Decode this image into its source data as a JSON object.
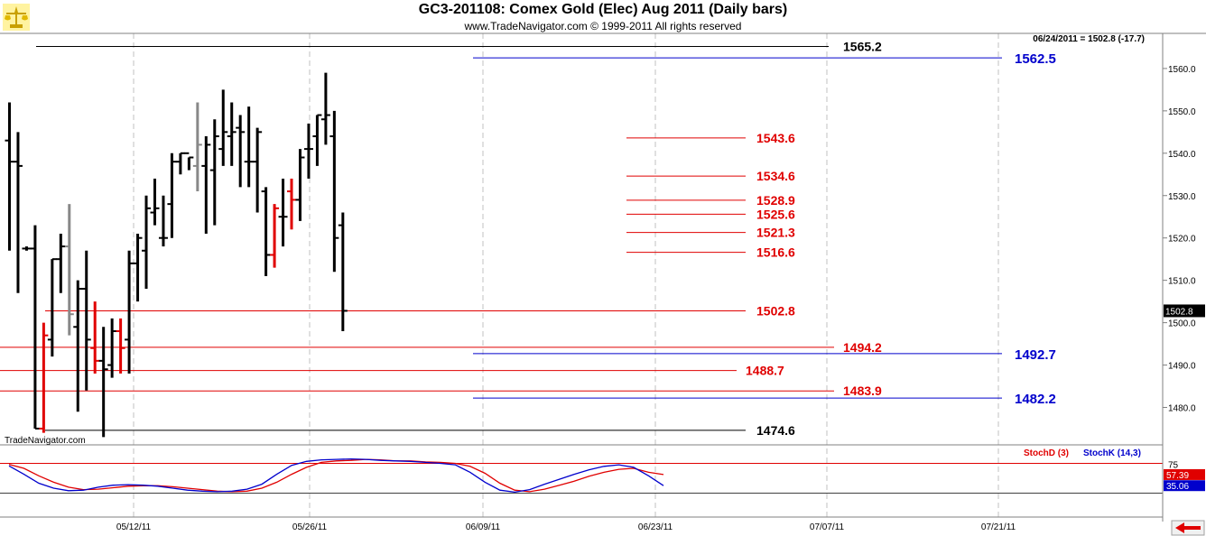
{
  "header": {
    "title": "GC3-201108:  Comex Gold (Elec) Aug 2011  (Daily bars)",
    "copyright": "www.TradeNavigator.com © 1999-2011 All rights reserved"
  },
  "logo_icon": "gold-scale-icon",
  "watermark": "TradeNavigator.com",
  "quote_readout": "06/24/2011 = 1502.8 (-17.7)",
  "last_price_tag": "1502.8",
  "colors": {
    "bar_default": "#000000",
    "bar_down": "#e00000",
    "bar_gray": "#888888",
    "level_red": "#e00000",
    "level_blue": "#0000cc",
    "level_black": "#000000",
    "stochD": "#e00000",
    "stochK": "#0000cc",
    "grid": "#c0c0c0"
  },
  "chart_data": [
    {
      "type": "ohlc",
      "title": "GC3-201108:  Comex Gold (Elec) Aug 2011  (Daily bars)",
      "ylim": [
        1470,
        1570
      ],
      "y_ticks": [
        1480,
        1490,
        1500,
        1510,
        1520,
        1530,
        1540,
        1550,
        1560
      ],
      "x_tick_labels": [
        "05/12/11",
        "05/26/11",
        "06/09/11",
        "06/23/11",
        "07/07/11",
        "07/21/11"
      ],
      "grid": true,
      "bars": [
        {
          "o": 1543.0,
          "h": 1552.0,
          "l": 1517.0,
          "c": 1538.0,
          "color": "black"
        },
        {
          "o": 1538.0,
          "h": 1545.0,
          "l": 1507.0,
          "c": 1537.0,
          "color": "black"
        },
        {
          "o": 1517.5,
          "h": 1518.0,
          "l": 1517.0,
          "c": 1517.5,
          "color": "black"
        },
        {
          "o": 1517.5,
          "h": 1523.0,
          "l": 1475.0,
          "c": 1475.0,
          "color": "black"
        },
        {
          "o": 1475.0,
          "h": 1500.0,
          "l": 1474.0,
          "c": 1497.0,
          "color": "red"
        },
        {
          "o": 1496.0,
          "h": 1515.0,
          "l": 1492.0,
          "c": 1515.0,
          "color": "black"
        },
        {
          "o": 1515.0,
          "h": 1521.0,
          "l": 1507.0,
          "c": 1518.0,
          "color": "black"
        },
        {
          "o": 1518.0,
          "h": 1528.0,
          "l": 1497.0,
          "c": 1502.0,
          "color": "gray"
        },
        {
          "o": 1499.0,
          "h": 1510.0,
          "l": 1479.0,
          "c": 1508.0,
          "color": "black"
        },
        {
          "o": 1508.0,
          "h": 1517.0,
          "l": 1484.0,
          "c": 1496.0,
          "color": "black"
        },
        {
          "o": 1494.0,
          "h": 1505.0,
          "l": 1488.0,
          "c": 1491.0,
          "color": "red"
        },
        {
          "o": 1491.0,
          "h": 1499.0,
          "l": 1473.0,
          "c": 1489.0,
          "color": "black"
        },
        {
          "o": 1490.0,
          "h": 1501.0,
          "l": 1487.0,
          "c": 1498.0,
          "color": "black"
        },
        {
          "o": 1498.0,
          "h": 1501.0,
          "l": 1488.0,
          "c": 1494.0,
          "color": "red"
        },
        {
          "o": 1496.0,
          "h": 1517.0,
          "l": 1488.0,
          "c": 1514.0,
          "color": "black"
        },
        {
          "o": 1514.0,
          "h": 1521.0,
          "l": 1505.0,
          "c": 1520.0,
          "color": "black"
        },
        {
          "o": 1517.0,
          "h": 1530.0,
          "l": 1508.0,
          "c": 1527.0,
          "color": "black"
        },
        {
          "o": 1526.0,
          "h": 1534.0,
          "l": 1523.0,
          "c": 1527.0,
          "color": "black"
        },
        {
          "o": 1520.0,
          "h": 1530.0,
          "l": 1518.0,
          "c": 1520.0,
          "color": "black"
        },
        {
          "o": 1528.0,
          "h": 1540.0,
          "l": 1520.0,
          "c": 1538.0,
          "color": "black"
        },
        {
          "o": 1538.0,
          "h": 1540.0,
          "l": 1535.0,
          "c": 1540.0,
          "color": "black"
        },
        {
          "o": 1540.0,
          "h": 1539.0,
          "l": 1536.0,
          "c": 1539.0,
          "color": "black"
        },
        {
          "o": 1537.0,
          "h": 1552.0,
          "l": 1531.0,
          "c": 1542.0,
          "color": "gray"
        },
        {
          "o": 1537.0,
          "h": 1544.0,
          "l": 1521.0,
          "c": 1542.0,
          "color": "black"
        },
        {
          "o": 1536.0,
          "h": 1548.0,
          "l": 1523.0,
          "c": 1544.0,
          "color": "black"
        },
        {
          "o": 1541.0,
          "h": 1555.0,
          "l": 1537.0,
          "c": 1545.0,
          "color": "black"
        },
        {
          "o": 1544.0,
          "h": 1552.0,
          "l": 1537.0,
          "c": 1545.0,
          "color": "black"
        },
        {
          "o": 1546.0,
          "h": 1549.0,
          "l": 1532.0,
          "c": 1545.0,
          "color": "black"
        },
        {
          "o": 1538.0,
          "h": 1551.0,
          "l": 1532.0,
          "c": 1538.0,
          "color": "black"
        },
        {
          "o": 1538.0,
          "h": 1546.0,
          "l": 1526.0,
          "c": 1545.0,
          "color": "black"
        },
        {
          "o": 1531.0,
          "h": 1532.0,
          "l": 1511.0,
          "c": 1516.0,
          "color": "black"
        },
        {
          "o": 1516.0,
          "h": 1528.0,
          "l": 1513.0,
          "c": 1527.0,
          "color": "red"
        },
        {
          "o": 1525.0,
          "h": 1534.0,
          "l": 1518.0,
          "c": 1525.0,
          "color": "black"
        },
        {
          "o": 1531.0,
          "h": 1534.0,
          "l": 1522.0,
          "c": 1529.0,
          "color": "red"
        },
        {
          "o": 1529.0,
          "h": 1541.0,
          "l": 1524.0,
          "c": 1539.0,
          "color": "black"
        },
        {
          "o": 1541.0,
          "h": 1547.0,
          "l": 1534.0,
          "c": 1541.0,
          "color": "black"
        },
        {
          "o": 1544.0,
          "h": 1549.0,
          "l": 1537.0,
          "c": 1549.0,
          "color": "black"
        },
        {
          "o": 1548.0,
          "h": 1559.0,
          "l": 1542.0,
          "c": 1549.0,
          "color": "black"
        },
        {
          "o": 1544.0,
          "h": 1550.0,
          "l": 1512.0,
          "c": 1520.0,
          "color": "black"
        },
        {
          "o": 1523.0,
          "h": 1526.0,
          "l": 1498.0,
          "c": 1502.8,
          "color": "black"
        }
      ],
      "levels": [
        {
          "value": 1565.2,
          "label": "1565.2",
          "color": "black",
          "span": "long"
        },
        {
          "value": 1562.5,
          "label": "1562.5",
          "color": "blue",
          "span": "right"
        },
        {
          "value": 1543.6,
          "label": "1543.6",
          "color": "red",
          "span": "short"
        },
        {
          "value": 1534.6,
          "label": "1534.6",
          "color": "red",
          "span": "short"
        },
        {
          "value": 1528.9,
          "label": "1528.9",
          "color": "red",
          "span": "short"
        },
        {
          "value": 1525.6,
          "label": "1525.6",
          "color": "red",
          "span": "short"
        },
        {
          "value": 1521.3,
          "label": "1521.3",
          "color": "red",
          "span": "short"
        },
        {
          "value": 1516.6,
          "label": "1516.6",
          "color": "red",
          "span": "short"
        },
        {
          "value": 1502.8,
          "label": "1502.8",
          "color": "red",
          "span": "mid"
        },
        {
          "value": 1494.2,
          "label": "1494.2",
          "color": "red",
          "span": "full"
        },
        {
          "value": 1492.7,
          "label": "1492.7",
          "color": "blue",
          "span": "right"
        },
        {
          "value": 1488.7,
          "label": "1488.7",
          "color": "red",
          "span": "full"
        },
        {
          "value": 1483.9,
          "label": "1483.9",
          "color": "red",
          "span": "full"
        },
        {
          "value": 1482.2,
          "label": "1482.2",
          "color": "blue",
          "span": "right"
        },
        {
          "value": 1474.6,
          "label": "1474.6",
          "color": "black",
          "span": "mid"
        }
      ]
    },
    {
      "type": "line",
      "legend": [
        "StochD (3)",
        "StochK (14,3)"
      ],
      "legend_position": "top-right",
      "ylim": [
        0,
        100
      ],
      "y_ticks": [
        75
      ],
      "reference_lines": [
        80,
        20
      ],
      "value_tags": [
        "57.39",
        "35.06"
      ],
      "series": [
        {
          "name": "StochD (3)",
          "color": "red",
          "values": [
            78,
            70,
            55,
            42,
            32,
            27,
            28,
            31,
            34,
            35,
            35,
            33,
            30,
            27,
            24,
            23,
            24,
            30,
            42,
            58,
            72,
            82,
            85,
            86,
            88,
            87,
            85,
            85,
            83,
            82,
            80,
            74,
            60,
            40,
            26,
            23,
            28,
            36,
            44,
            54,
            62,
            68,
            70,
            62,
            57.39
          ]
        },
        {
          "name": "StochK (14,3)",
          "color": "blue",
          "values": [
            75,
            58,
            40,
            30,
            25,
            26,
            32,
            36,
            37,
            36,
            34,
            30,
            26,
            24,
            23,
            24,
            28,
            38,
            58,
            76,
            84,
            87,
            88,
            89,
            88,
            86,
            85,
            84,
            82,
            80,
            77,
            62,
            42,
            26,
            22,
            27,
            38,
            48,
            58,
            67,
            74,
            77,
            72,
            55,
            35.06
          ]
        }
      ]
    }
  ]
}
